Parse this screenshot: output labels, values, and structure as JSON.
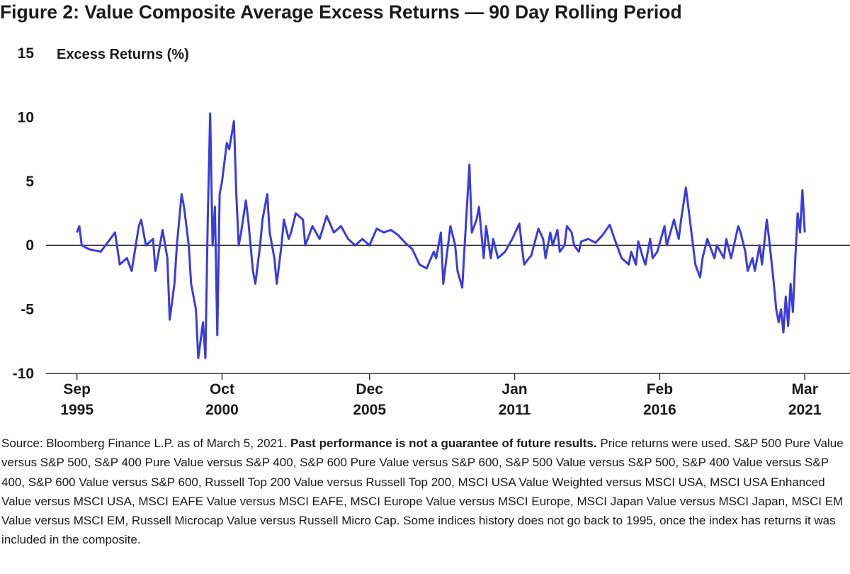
{
  "chart_data": {
    "type": "line",
    "title": "Figure 2: Value Composite Average Excess Returns — 90 Day Rolling Period",
    "y_label": "Excess Returns (%)",
    "color": "#3b3bdc",
    "x": [
      "1995-09",
      "1995-10",
      "1995-11",
      "1996-02",
      "1996-07",
      "1996-11",
      "1997-01",
      "1997-03",
      "1997-06",
      "1997-08",
      "1997-11",
      "1997-12",
      "1998-02",
      "1998-05",
      "1998-06",
      "1998-09",
      "1998-11",
      "1998-12",
      "1999-02",
      "1999-03",
      "1999-05",
      "1999-06",
      "1999-08",
      "1999-09",
      "1999-11",
      "1999-12",
      "2000-02",
      "2000-03",
      "2000-04",
      "2000-05",
      "2000-06",
      "2000-07",
      "2000-08",
      "2000-09",
      "2000-10",
      "2000-12",
      "2001-01",
      "2001-03",
      "2001-04",
      "2001-05",
      "2001-06",
      "2001-08",
      "2001-09",
      "2001-11",
      "2001-12",
      "2002-02",
      "2002-03",
      "2002-05",
      "2002-06",
      "2002-08",
      "2002-09",
      "2002-11",
      "2002-12",
      "2003-02",
      "2003-03",
      "2003-05",
      "2003-08",
      "2003-09",
      "2003-12",
      "2004-03",
      "2004-06",
      "2004-09",
      "2004-12",
      "2005-03",
      "2005-06",
      "2005-09",
      "2005-12",
      "2006-03",
      "2006-06",
      "2006-09",
      "2006-12",
      "2007-03",
      "2007-06",
      "2007-09",
      "2007-12",
      "2008-03",
      "2008-04",
      "2008-06",
      "2008-07",
      "2008-09",
      "2008-10",
      "2008-12",
      "2009-01",
      "2009-03",
      "2009-04",
      "2009-06",
      "2009-07",
      "2009-09",
      "2009-10",
      "2009-12",
      "2010-01",
      "2010-03",
      "2010-04",
      "2010-06",
      "2010-09",
      "2010-12",
      "2011-03",
      "2011-04",
      "2011-05",
      "2011-07",
      "2011-08",
      "2011-11",
      "2012-01",
      "2012-02",
      "2012-04",
      "2012-05",
      "2012-07",
      "2012-08",
      "2012-10",
      "2012-11",
      "2013-01",
      "2013-02",
      "2013-04",
      "2013-05",
      "2013-08",
      "2013-11",
      "2014-02",
      "2014-05",
      "2014-07",
      "2014-10",
      "2015-01",
      "2015-02",
      "2015-04",
      "2015-05",
      "2015-07",
      "2015-08",
      "2015-10",
      "2015-11",
      "2016-01",
      "2016-04",
      "2016-05",
      "2016-08",
      "2016-10",
      "2016-11",
      "2017-01",
      "2017-02",
      "2017-04",
      "2017-05",
      "2017-07",
      "2017-08",
      "2017-10",
      "2017-11",
      "2018-01",
      "2018-02",
      "2018-05",
      "2018-06",
      "2018-08",
      "2018-11",
      "2018-12",
      "2019-02",
      "2019-03",
      "2019-05",
      "2019-06",
      "2019-08",
      "2019-09",
      "2019-11",
      "2019-12",
      "2020-02",
      "2020-03",
      "2020-04",
      "2020-05",
      "2020-06",
      "2020-07",
      "2020-08",
      "2020-09",
      "2020-10",
      "2020-11",
      "2020-12",
      "2021-01",
      "2021-02",
      "2021-03"
    ],
    "values": [
      1.0,
      1.5,
      0,
      -0.3,
      -0.5,
      0.5,
      1.0,
      -1.5,
      -1.0,
      -2.0,
      1.5,
      2.0,
      0,
      0.5,
      -2.0,
      1.2,
      -1.0,
      -5.8,
      -3,
      0,
      4.0,
      3.0,
      0,
      -3,
      -5,
      -8.8,
      -6,
      -8.8,
      2.0,
      10.3,
      0,
      3,
      -7.0,
      4,
      5,
      8,
      7.5,
      9.7,
      4,
      0,
      1,
      3.5,
      2,
      -2,
      -3.0,
      0,
      2,
      4,
      1,
      -1,
      -3,
      0,
      2,
      0.5,
      1,
      2.5,
      2,
      0,
      1.5,
      0.5,
      2.3,
      1.0,
      1.5,
      0.5,
      0,
      0.5,
      0,
      1.3,
      1.0,
      1.2,
      0.8,
      0.2,
      -0.3,
      -1.5,
      -1.8,
      -0.5,
      -1.0,
      1.0,
      -3.0,
      0,
      1.5,
      0,
      -2,
      -3.3,
      0,
      6.3,
      1,
      2,
      3,
      -1,
      1.5,
      -1,
      0.5,
      -1,
      -0.5,
      0.5,
      1.7,
      0,
      -1.5,
      -1,
      -0.8,
      1.3,
      0.5,
      -1.0,
      1.0,
      0,
      1.2,
      -0.5,
      0,
      1.5,
      1,
      0,
      -0.5,
      0.3,
      0.5,
      0.2,
      0.8,
      1.6,
      0.5,
      -1.0,
      -1.5,
      -0.5,
      -1.5,
      0.3,
      -1.0,
      -1.5,
      0.5,
      -1.0,
      -0.5,
      1.5,
      0,
      2.0,
      0.5,
      2.0,
      4.5,
      3,
      0,
      -1.5,
      -2.5,
      -1,
      0.5,
      0,
      -1,
      0,
      -1.0,
      0.5,
      -1,
      1.5,
      1.0,
      -0.5,
      -2.0,
      -1.0,
      -2.0,
      0,
      -1.5,
      2.0,
      0.5,
      -3.0,
      -5,
      -6.0,
      -5.0,
      -6.8,
      -4.0,
      -6.3,
      -3,
      -5.2,
      -1.0,
      2.5,
      1.0,
      4.3,
      1.0
    ],
    "xlim": [
      "1994-08",
      "2022-10"
    ],
    "xticks": [
      {
        "value": "1995-09",
        "label": "Sep 1995"
      },
      {
        "value": "2000-10",
        "label": "Oct 2000"
      },
      {
        "value": "2005-12",
        "label": "Dec 2005"
      },
      {
        "value": "2011-01",
        "label": "Jan 2011"
      },
      {
        "value": "2016-02",
        "label": "Feb 2016"
      },
      {
        "value": "2021-03",
        "label": "Mar 2021"
      }
    ],
    "ylim": [
      -10,
      15
    ],
    "yticks": [
      -10,
      -5,
      0,
      5,
      10,
      15
    ],
    "source": "Source: Bloomberg Finance L.P. as of March 5, 2021.",
    "disclaimer": "Past performance is not a guarantee of future results.",
    "note": "Price returns were used. S&P 500 Pure Value versus S&P 500, S&P 400 Pure Value versus S&P 400, S&P 600 Pure Value versus S&P 600, S&P 500 Value versus S&P 500, S&P 400 Value versus S&P 400, S&P 600 Value versus S&P 600, Russell Top 200 Value versus Russell Top 200, MSCI USA Value Weighted versus MSCI USA, MSCI USA Enhanced Value versus MSCI USA, MSCI EAFE Value versus MSCI EAFE, MSCI Europe Value versus MSCI Europe, MSCI Japan Value versus MSCI Japan, MSCI EM Value versus MSCI EM, Russell Microcap Value versus Russell Micro Cap. Some indices history does not go back to 1995, once the index has returns it was included in the composite."
  }
}
